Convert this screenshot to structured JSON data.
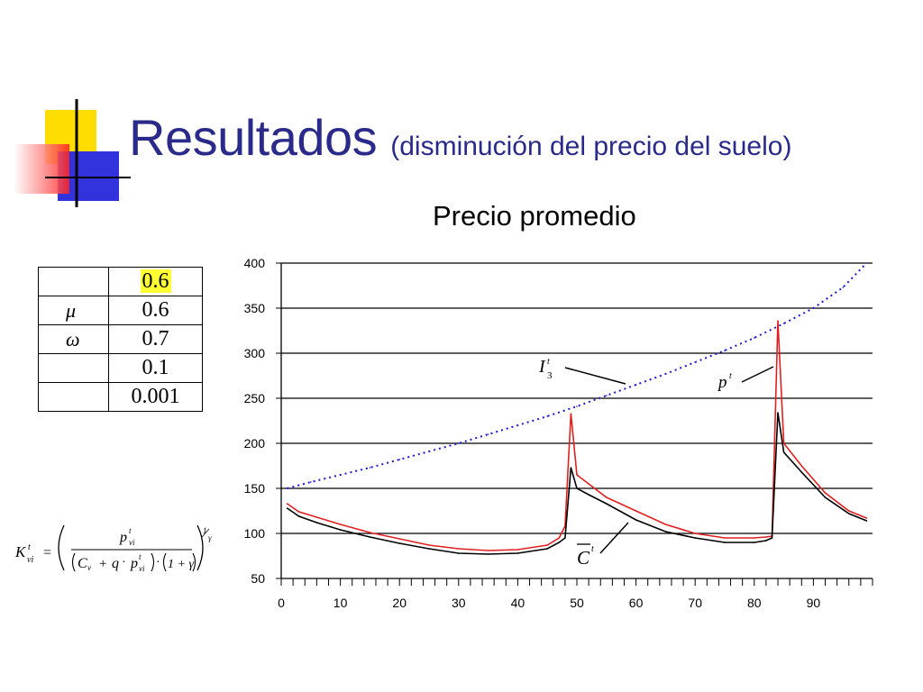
{
  "slide": {
    "title": "Resultados",
    "subtitle": "(disminución del precio del suelo)",
    "chart_title": "Precio promedio"
  },
  "params": [
    {
      "symbol": "",
      "value": "0.6",
      "highlight": true
    },
    {
      "symbol": "μ",
      "value": "0.6",
      "highlight": false
    },
    {
      "symbol": "ω",
      "value": "0.7",
      "highlight": false
    },
    {
      "symbol": "",
      "value": "0.1",
      "highlight": false
    },
    {
      "symbol": "",
      "value": "0.001",
      "highlight": false
    }
  ],
  "formula": {
    "lhs": "K",
    "lhs_sup": "t",
    "lhs_sub": "vi",
    "num": "p",
    "num_sup": "t",
    "num_sub": "vi",
    "cv": "C",
    "cv_sub": "v",
    "q": "q",
    "p2": "p",
    "p2_sup": "t",
    "p2_sub": "vi",
    "one_plus_gamma": "1 + γ",
    "exp_num": "1",
    "exp_den": "γ"
  },
  "chart_data": {
    "type": "line",
    "ylim": [
      50,
      400
    ],
    "xlim": [
      0,
      100
    ],
    "yticks": [
      "50",
      "100",
      "150",
      "200",
      "250",
      "300",
      "350",
      "400"
    ],
    "xticks": [
      "0",
      "10",
      "20",
      "30",
      "40",
      "50",
      "60",
      "70",
      "80",
      "90"
    ],
    "colors": {
      "I3": "#1a1acc",
      "red": "#e02020",
      "black": "#000000"
    },
    "series": [
      {
        "key": "I3",
        "style": "dotted",
        "x": [
          1,
          5,
          10,
          15,
          20,
          25,
          30,
          35,
          40,
          45,
          50,
          55,
          60,
          65,
          70,
          75,
          80,
          85,
          90,
          95,
          99
        ],
        "values": [
          150,
          157,
          165,
          173,
          182,
          191,
          200,
          210,
          220,
          230,
          241,
          253,
          265,
          277,
          290,
          303,
          317,
          333,
          350,
          373,
          400
        ]
      },
      {
        "key": "red",
        "style": "solid",
        "x": [
          1,
          3,
          6,
          10,
          15,
          20,
          25,
          30,
          35,
          40,
          45,
          47,
          48,
          49,
          50,
          52,
          55,
          60,
          65,
          70,
          75,
          80,
          82,
          83,
          84,
          85,
          88,
          92,
          96,
          99
        ],
        "values": [
          133,
          124,
          118,
          110,
          101,
          94,
          87,
          83,
          81,
          82,
          87,
          95,
          108,
          233,
          165,
          155,
          140,
          125,
          110,
          100,
          95,
          95,
          96,
          97,
          336,
          200,
          175,
          145,
          125,
          117
        ]
      },
      {
        "key": "black",
        "style": "solid",
        "x": [
          1,
          3,
          6,
          10,
          15,
          20,
          25,
          30,
          35,
          40,
          45,
          47,
          48,
          49,
          50,
          52,
          55,
          60,
          65,
          70,
          75,
          80,
          82,
          83,
          84,
          85,
          88,
          92,
          96,
          99
        ],
        "values": [
          128,
          119,
          112,
          104,
          96,
          89,
          83,
          78,
          77,
          78,
          83,
          90,
          95,
          173,
          150,
          143,
          133,
          115,
          102,
          95,
          90,
          90,
          92,
          95,
          234,
          190,
          168,
          140,
          122,
          114
        ]
      }
    ],
    "annotations": [
      {
        "label": "I",
        "sup": "t",
        "sub": "3",
        "points_to": "I3"
      },
      {
        "label": "p",
        "sup": "t",
        "points_to": "red"
      },
      {
        "label": "C",
        "sup": "t",
        "overline": true,
        "points_to": "black"
      }
    ]
  }
}
